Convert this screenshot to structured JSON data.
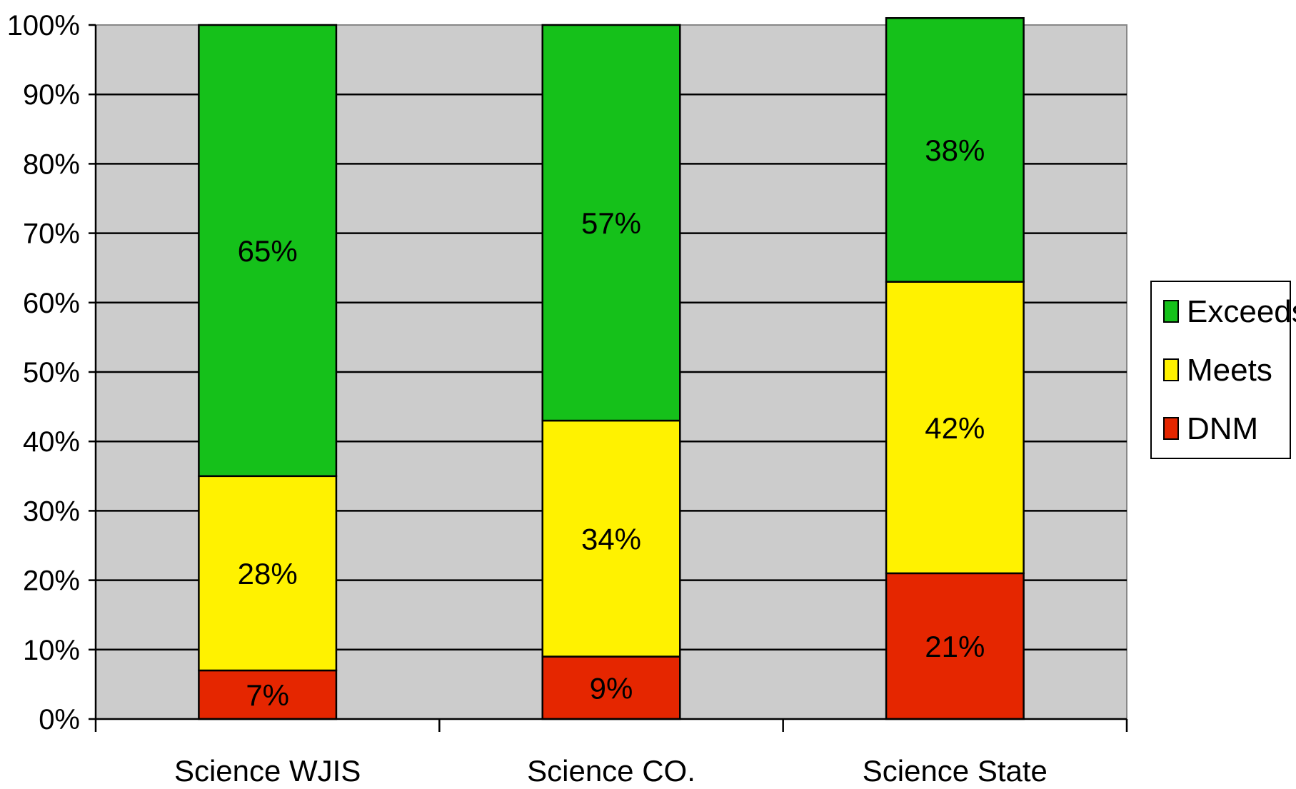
{
  "chart_data": {
    "type": "bar",
    "stacked": true,
    "categories": [
      "Science WJIS",
      "Science CO.",
      "Science State"
    ],
    "series": [
      {
        "name": "DNM",
        "values": [
          7,
          9,
          21
        ],
        "labels": [
          "7%",
          "9%",
          "21%"
        ],
        "color": "#E52600"
      },
      {
        "name": "Meets",
        "values": [
          28,
          34,
          42
        ],
        "labels": [
          "28%",
          "34%",
          "42%"
        ],
        "color": "#FFF200"
      },
      {
        "name": "Exceeds",
        "values": [
          65,
          57,
          38
        ],
        "labels": [
          "65%",
          "57%",
          "38%"
        ],
        "color": "#15C11A"
      }
    ],
    "y_ticks": [
      {
        "value": 0,
        "label": "0%"
      },
      {
        "value": 10,
        "label": "10%"
      },
      {
        "value": 20,
        "label": "20%"
      },
      {
        "value": 30,
        "label": "30%"
      },
      {
        "value": 40,
        "label": "40%"
      },
      {
        "value": 50,
        "label": "50%"
      },
      {
        "value": 60,
        "label": "60%"
      },
      {
        "value": 70,
        "label": "70%"
      },
      {
        "value": 80,
        "label": "80%"
      },
      {
        "value": 90,
        "label": "90%"
      },
      {
        "value": 100,
        "label": "100%"
      }
    ],
    "ylim": [
      0,
      100
    ],
    "title": "",
    "xlabel": "",
    "ylabel": "",
    "grid": true,
    "legend_position": "right",
    "legend_order": [
      "Exceeds",
      "Meets",
      "DNM"
    ],
    "plot_background": "#CCCCCC"
  }
}
